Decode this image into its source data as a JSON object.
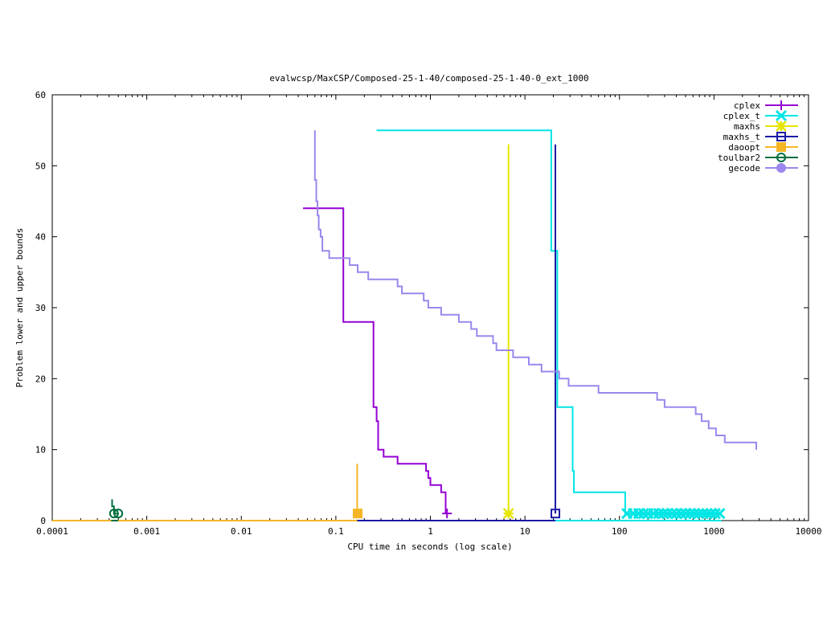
{
  "chart_data": {
    "type": "line",
    "title": "evalwcsp/MaxCSP/Composed-25-1-40/composed-25-1-40-0_ext_1000",
    "xlabel": "CPU time in seconds (log scale)",
    "ylabel": "Problem lower and upper bounds",
    "xscale": "log",
    "xlim": [
      0.0001,
      10000
    ],
    "ylim": [
      0,
      60
    ],
    "x_ticks": [
      {
        "value": 0.0001,
        "label": "0.0001"
      },
      {
        "value": 0.001,
        "label": "0.001"
      },
      {
        "value": 0.01,
        "label": "0.01"
      },
      {
        "value": 0.1,
        "label": "0.1"
      },
      {
        "value": 1,
        "label": "1"
      },
      {
        "value": 10,
        "label": "10"
      },
      {
        "value": 100,
        "label": "100"
      },
      {
        "value": 1000,
        "label": "1000"
      },
      {
        "value": 10000,
        "label": "10000"
      }
    ],
    "y_ticks": [
      {
        "value": 0,
        "label": "0"
      },
      {
        "value": 10,
        "label": "10"
      },
      {
        "value": 20,
        "label": "20"
      },
      {
        "value": 30,
        "label": "30"
      },
      {
        "value": 40,
        "label": "40"
      },
      {
        "value": 50,
        "label": "50"
      },
      {
        "value": 60,
        "label": "60"
      }
    ],
    "grid": false,
    "legend_position": "top-right",
    "series": [
      {
        "name": "cplex",
        "color": "#9400d3",
        "marker": "plus",
        "upper": [
          [
            0.045,
            44
          ],
          [
            0.12,
            44
          ],
          [
            0.12,
            28
          ],
          [
            0.25,
            28
          ],
          [
            0.25,
            16
          ],
          [
            0.27,
            16
          ],
          [
            0.27,
            14
          ],
          [
            0.28,
            14
          ],
          [
            0.28,
            10
          ],
          [
            0.32,
            10
          ],
          [
            0.32,
            9
          ],
          [
            0.45,
            9
          ],
          [
            0.45,
            8
          ],
          [
            0.9,
            8
          ],
          [
            0.9,
            7
          ],
          [
            0.95,
            7
          ],
          [
            0.95,
            6
          ],
          [
            1.0,
            6
          ],
          [
            1.0,
            5
          ],
          [
            1.3,
            5
          ],
          [
            1.3,
            4
          ],
          [
            1.45,
            4
          ],
          [
            1.45,
            1
          ]
        ],
        "lower": [
          [
            0.0001,
            0
          ],
          [
            1.45,
            0
          ]
        ],
        "end_points": [
          [
            1.5,
            1
          ]
        ]
      },
      {
        "name": "cplex_t",
        "color": "#00e5e5",
        "marker": "cross",
        "upper": [
          [
            0.27,
            55
          ],
          [
            19,
            55
          ],
          [
            19,
            38
          ],
          [
            22,
            38
          ],
          [
            22,
            16
          ],
          [
            32,
            16
          ],
          [
            32,
            7
          ],
          [
            33,
            7
          ],
          [
            33,
            4
          ],
          [
            115,
            4
          ],
          [
            115,
            1
          ],
          [
            1200,
            1
          ]
        ],
        "lower": [
          [
            0.0001,
            0
          ],
          [
            1200,
            0
          ]
        ],
        "end_points": [
          [
            120,
            1
          ],
          [
            140,
            1
          ],
          [
            160,
            1
          ],
          [
            180,
            1
          ],
          [
            200,
            1
          ],
          [
            230,
            1
          ],
          [
            260,
            1
          ],
          [
            290,
            1
          ],
          [
            320,
            1
          ],
          [
            360,
            1
          ],
          [
            400,
            1
          ],
          [
            450,
            1
          ],
          [
            500,
            1
          ],
          [
            560,
            1
          ],
          [
            620,
            1
          ],
          [
            690,
            1
          ],
          [
            760,
            1
          ],
          [
            840,
            1
          ],
          [
            930,
            1
          ],
          [
            1030,
            1
          ],
          [
            1150,
            1
          ]
        ]
      },
      {
        "name": "maxhs",
        "color": "#e5e500",
        "marker": "star",
        "upper": [
          [
            6.7,
            53
          ],
          [
            6.7,
            1
          ]
        ],
        "lower": [
          [
            0.0001,
            0
          ],
          [
            6.7,
            0
          ]
        ],
        "end_points": [
          [
            6.7,
            1
          ]
        ]
      },
      {
        "name": "maxhs_t",
        "color": "#1a1aa6",
        "marker": "square",
        "upper": [
          [
            21,
            53
          ],
          [
            21,
            1
          ]
        ],
        "lower": [
          [
            0.0001,
            0
          ],
          [
            21,
            0
          ]
        ],
        "end_points": [
          [
            21,
            1
          ]
        ]
      },
      {
        "name": "daoopt",
        "color": "#f5b625",
        "marker": "filled-square",
        "upper": [
          [
            0.168,
            8
          ],
          [
            0.168,
            1
          ]
        ],
        "lower": [
          [
            0.0001,
            0
          ],
          [
            0.168,
            0
          ]
        ],
        "end_points": [
          [
            0.17,
            1
          ]
        ]
      },
      {
        "name": "toulbar2",
        "color": "#006e3d",
        "marker": "circle",
        "upper": [
          [
            0.00043,
            3
          ],
          [
            0.00043,
            2
          ],
          [
            0.00045,
            2
          ],
          [
            0.00045,
            1
          ],
          [
            0.0005,
            1
          ]
        ],
        "lower": [
          [
            0.00042,
            0
          ],
          [
            0.0005,
            0
          ]
        ],
        "end_points": [
          [
            0.00045,
            1
          ],
          [
            0.0005,
            1
          ]
        ]
      },
      {
        "name": "gecode",
        "color": "#9b87ee",
        "marker": "filled-circle",
        "upper": [
          [
            0.06,
            55
          ],
          [
            0.06,
            48
          ],
          [
            0.062,
            48
          ],
          [
            0.062,
            45
          ],
          [
            0.064,
            45
          ],
          [
            0.064,
            43
          ],
          [
            0.066,
            43
          ],
          [
            0.066,
            41
          ],
          [
            0.069,
            41
          ],
          [
            0.069,
            40
          ],
          [
            0.072,
            40
          ],
          [
            0.072,
            38
          ],
          [
            0.085,
            38
          ],
          [
            0.085,
            37
          ],
          [
            0.14,
            37
          ],
          [
            0.14,
            36
          ],
          [
            0.17,
            36
          ],
          [
            0.17,
            35
          ],
          [
            0.22,
            35
          ],
          [
            0.22,
            34
          ],
          [
            0.45,
            34
          ],
          [
            0.45,
            33
          ],
          [
            0.5,
            33
          ],
          [
            0.5,
            32
          ],
          [
            0.85,
            32
          ],
          [
            0.85,
            31
          ],
          [
            0.95,
            31
          ],
          [
            0.95,
            30
          ],
          [
            1.3,
            30
          ],
          [
            1.3,
            29
          ],
          [
            2.0,
            29
          ],
          [
            2.0,
            28
          ],
          [
            2.7,
            28
          ],
          [
            2.7,
            27
          ],
          [
            3.1,
            27
          ],
          [
            3.1,
            26
          ],
          [
            4.6,
            26
          ],
          [
            4.6,
            25
          ],
          [
            5.0,
            25
          ],
          [
            5.0,
            24
          ],
          [
            7.5,
            24
          ],
          [
            7.5,
            23
          ],
          [
            11,
            23
          ],
          [
            11,
            22
          ],
          [
            15,
            22
          ],
          [
            15,
            21
          ],
          [
            23,
            21
          ],
          [
            23,
            20
          ],
          [
            29,
            20
          ],
          [
            29,
            19
          ],
          [
            60,
            19
          ],
          [
            60,
            18
          ],
          [
            250,
            18
          ],
          [
            250,
            17
          ],
          [
            300,
            17
          ],
          [
            300,
            16
          ],
          [
            640,
            16
          ],
          [
            640,
            15
          ],
          [
            740,
            15
          ],
          [
            740,
            14
          ],
          [
            880,
            14
          ],
          [
            880,
            13
          ],
          [
            1050,
            13
          ],
          [
            1050,
            12
          ],
          [
            1300,
            12
          ],
          [
            1300,
            11
          ],
          [
            2800,
            11
          ],
          [
            2800,
            10
          ]
        ],
        "lower": [],
        "end_points": []
      }
    ]
  }
}
